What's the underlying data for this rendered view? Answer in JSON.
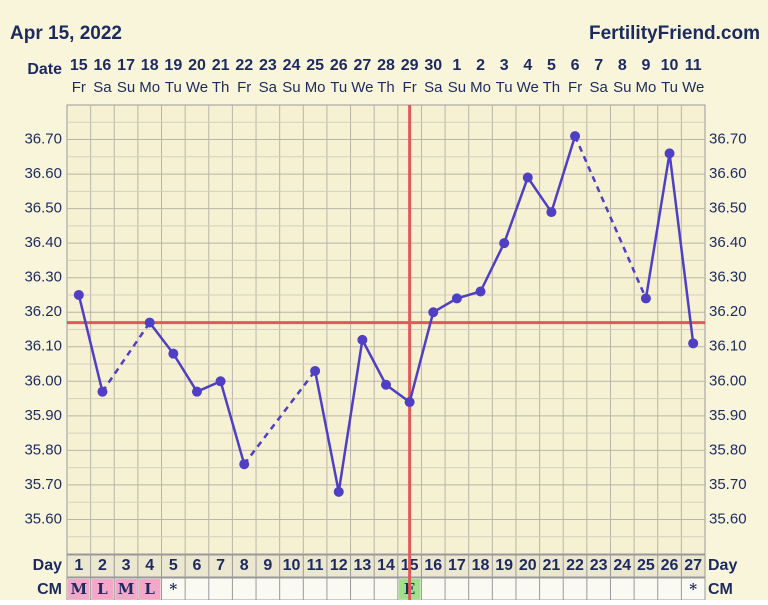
{
  "header_left": "Apr 15, 2022",
  "header_right": "FertilityFriend.com",
  "date_label": "Date",
  "day_label": "Day",
  "cm_label": "CM",
  "chart_data": {
    "type": "line",
    "dates": [
      15,
      16,
      17,
      18,
      19,
      20,
      21,
      22,
      23,
      24,
      25,
      26,
      27,
      28,
      29,
      30,
      1,
      2,
      3,
      4,
      5,
      6,
      7,
      8,
      9,
      10,
      11
    ],
    "weekdays": [
      "Fr",
      "Sa",
      "Su",
      "Mo",
      "Tu",
      "We",
      "Th",
      "Fr",
      "Sa",
      "Su",
      "Mo",
      "Tu",
      "We",
      "Th",
      "Fr",
      "Sa",
      "Su",
      "Mo",
      "Tu",
      "We",
      "Th",
      "Fr",
      "Sa",
      "Su",
      "Mo",
      "Tu",
      "We"
    ],
    "categories": [
      1,
      2,
      3,
      4,
      5,
      6,
      7,
      8,
      9,
      10,
      11,
      12,
      13,
      14,
      15,
      16,
      17,
      18,
      19,
      20,
      21,
      22,
      23,
      24,
      25,
      26,
      27
    ],
    "values": [
      36.25,
      35.97,
      null,
      36.17,
      36.08,
      35.97,
      36.0,
      35.76,
      null,
      null,
      36.03,
      35.68,
      36.12,
      35.99,
      35.94,
      36.2,
      36.24,
      36.26,
      36.4,
      36.59,
      36.49,
      36.71,
      null,
      null,
      36.24,
      36.66,
      36.11
    ],
    "cm": [
      "M",
      "L",
      "M",
      "L",
      "*",
      null,
      null,
      null,
      null,
      null,
      null,
      null,
      null,
      null,
      "E",
      null,
      null,
      null,
      null,
      null,
      null,
      null,
      null,
      null,
      null,
      null,
      "*"
    ],
    "color": "#4f3fc4",
    "coverline": 36.17,
    "ovulation_day": 15,
    "line_marker_color": "#e05a5a",
    "ylim": [
      35.5,
      36.8
    ],
    "yticks": [
      {
        "value": 35.6,
        "label": "35.60"
      },
      {
        "value": 35.7,
        "label": "35.70"
      },
      {
        "value": 35.8,
        "label": "35.80"
      },
      {
        "value": 35.9,
        "label": "35.90"
      },
      {
        "value": 36.0,
        "label": "36.00"
      },
      {
        "value": 36.1,
        "label": "36.10"
      },
      {
        "value": 36.2,
        "label": "36.20"
      },
      {
        "value": 36.3,
        "label": "36.30"
      },
      {
        "value": 36.4,
        "label": "36.40"
      },
      {
        "value": 36.5,
        "label": "36.50"
      },
      {
        "value": 36.6,
        "label": "36.60"
      },
      {
        "value": 36.7,
        "label": "36.70"
      }
    ],
    "grid": true
  }
}
